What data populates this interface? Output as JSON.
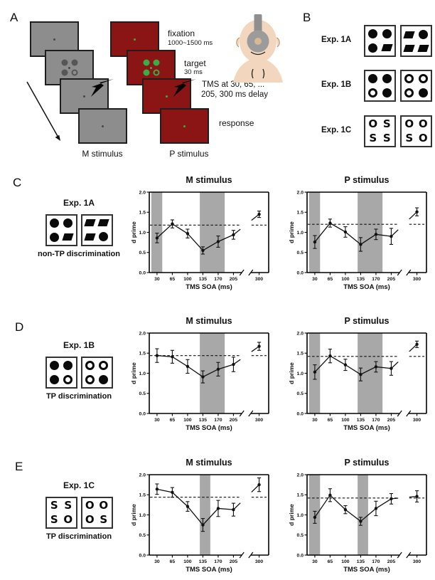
{
  "panel_letters": {
    "a": "A",
    "b": "B",
    "c": "C",
    "d": "D",
    "e": "E"
  },
  "colors": {
    "m_screen": "#8d8d8d",
    "p_screen": "#8b1414",
    "screen_border": "#1e1e1e",
    "target_green": "#3aad47",
    "target_gray": "#565656",
    "shading": "#a8a8a8"
  },
  "panel_a": {
    "fixation_label": "fixation",
    "fixation_duration": "1000~1500 ms",
    "target_label": "target",
    "target_duration": "30 ms",
    "tms_line1": "TMS at 30, 65, ...",
    "tms_line2": "205, 300 ms delay",
    "response_label": "response",
    "m_label": "M stimulus",
    "p_label": "P stimulus"
  },
  "panel_b": {
    "rows": [
      {
        "name": "Exp. 1A",
        "boxes": [
          [
            "fc",
            "fc",
            "fc",
            "pg"
          ],
          [
            "pg",
            "fc",
            "pg",
            "pg"
          ]
        ]
      },
      {
        "name": "Exp. 1B",
        "boxes": [
          [
            "fc",
            "fc",
            "oc",
            "fc"
          ],
          [
            "oc",
            "oc",
            "oc",
            "fc"
          ]
        ]
      },
      {
        "name": "Exp. 1C",
        "boxes": [
          [
            "O",
            "S",
            "S",
            "S"
          ],
          [
            "O",
            "O",
            "S",
            "O"
          ]
        ]
      }
    ]
  },
  "exp_cards": [
    {
      "panel": "C",
      "title": "Exp. 1A",
      "caption": "non-TP discrimination",
      "boxes": [
        [
          "fc",
          "fc",
          "fc",
          "pg"
        ],
        [
          "pg",
          "pg",
          "pg",
          "fc"
        ]
      ]
    },
    {
      "panel": "D",
      "title": "Exp. 1B",
      "caption": "TP discrimination",
      "boxes": [
        [
          "fc",
          "fc",
          "fc",
          "oc"
        ],
        [
          "oc",
          "oc",
          "oc",
          "fc"
        ]
      ]
    },
    {
      "panel": "E",
      "title": "Exp. 1C",
      "caption": "TP discrimination",
      "boxes": [
        [
          "S",
          "S",
          "S",
          "O"
        ],
        [
          "O",
          "O",
          "O",
          "S"
        ]
      ]
    }
  ],
  "chart_data": [
    {
      "id": "c_m",
      "panel": "C",
      "type": "line",
      "title": "M stimulus",
      "xlabel": "TMS SOA (ms)",
      "ylabel": "d prime",
      "x": [
        30,
        65,
        100,
        135,
        170,
        205,
        300
      ],
      "xticklabels": [
        "30",
        "65",
        "100",
        "135",
        "170",
        "205",
        "300"
      ],
      "values": [
        0.86,
        1.21,
        0.97,
        0.55,
        0.77,
        0.94,
        1.45
      ],
      "errors": [
        0.12,
        0.1,
        0.11,
        0.09,
        0.14,
        0.11,
        0.08
      ],
      "baseline": 1.18,
      "ylim": [
        0,
        2
      ],
      "yticks": [
        0,
        0.5,
        1,
        1.5,
        2
      ],
      "shaded_bands_ms": [
        [
          17,
          42
        ],
        [
          128,
          185
        ]
      ],
      "axis_break_between": [
        205,
        300
      ]
    },
    {
      "id": "c_p",
      "panel": "C",
      "type": "line",
      "title": "P stimulus",
      "xlabel": "TMS SOA (ms)",
      "ylabel": "d prime",
      "x": [
        30,
        65,
        100,
        135,
        170,
        205,
        300
      ],
      "xticklabels": [
        "30",
        "65",
        "100",
        "135",
        "170",
        "205",
        "300"
      ],
      "values": [
        0.76,
        1.23,
        1.01,
        0.7,
        0.95,
        0.9,
        1.51
      ],
      "errors": [
        0.16,
        0.1,
        0.13,
        0.17,
        0.13,
        0.2,
        0.1
      ],
      "baseline": 1.2,
      "ylim": [
        0,
        2
      ],
      "yticks": [
        0,
        0.5,
        1,
        1.5,
        2
      ],
      "shaded_bands_ms": [
        [
          17,
          42
        ],
        [
          128,
          185
        ]
      ],
      "axis_break_between": [
        205,
        300
      ]
    },
    {
      "id": "d_m",
      "panel": "D",
      "type": "line",
      "title": "M stimulus",
      "xlabel": "TMS SOA (ms)",
      "ylabel": "d prime",
      "x": [
        30,
        65,
        100,
        135,
        170,
        205,
        300
      ],
      "xticklabels": [
        "30",
        "65",
        "100",
        "135",
        "170",
        "205",
        "300"
      ],
      "values": [
        1.44,
        1.41,
        1.17,
        0.91,
        1.1,
        1.22,
        1.67
      ],
      "errors": [
        0.17,
        0.16,
        0.17,
        0.15,
        0.17,
        0.18,
        0.1
      ],
      "baseline": 1.44,
      "ylim": [
        0,
        2
      ],
      "yticks": [
        0,
        0.5,
        1,
        1.5,
        2
      ],
      "shaded_bands_ms": [
        [
          128,
          185
        ]
      ],
      "axis_break_between": [
        205,
        300
      ]
    },
    {
      "id": "d_p",
      "panel": "D",
      "type": "line",
      "title": "P stimulus",
      "xlabel": "TMS SOA (ms)",
      "ylabel": "d prime",
      "x": [
        30,
        65,
        100,
        135,
        170,
        205,
        300
      ],
      "xticklabels": [
        "30",
        "65",
        "100",
        "135",
        "170",
        "205",
        "300"
      ],
      "values": [
        1.03,
        1.43,
        1.21,
        0.97,
        1.16,
        1.12,
        1.72
      ],
      "errors": [
        0.18,
        0.17,
        0.14,
        0.16,
        0.13,
        0.17,
        0.08
      ],
      "baseline": 1.42,
      "ylim": [
        0,
        2
      ],
      "yticks": [
        0,
        0.5,
        1,
        1.5,
        2
      ],
      "shaded_bands_ms": [
        [
          17,
          42
        ],
        [
          128,
          185
        ]
      ],
      "axis_break_between": [
        205,
        300
      ]
    },
    {
      "id": "e_m",
      "panel": "E",
      "type": "line",
      "title": "M stimulus",
      "xlabel": "TMS SOA (ms)",
      "ylabel": "d prime",
      "x": [
        30,
        65,
        100,
        135,
        170,
        205,
        300
      ],
      "xticklabels": [
        "30",
        "65",
        "100",
        "135",
        "170",
        "205",
        "300"
      ],
      "values": [
        1.64,
        1.56,
        1.21,
        0.75,
        1.16,
        1.13,
        1.75
      ],
      "errors": [
        0.13,
        0.12,
        0.12,
        0.16,
        0.2,
        0.16,
        0.17
      ],
      "baseline": 1.44,
      "ylim": [
        0,
        2
      ],
      "yticks": [
        0,
        0.5,
        1,
        1.5,
        2
      ],
      "shaded_bands_ms": [
        [
          128,
          152
        ]
      ],
      "axis_break_between": [
        205,
        300
      ]
    },
    {
      "id": "e_p",
      "panel": "E",
      "type": "line",
      "title": "P stimulus",
      "xlabel": "TMS SOA (ms)",
      "ylabel": "d prime",
      "x": [
        30,
        65,
        100,
        135,
        170,
        205,
        300
      ],
      "xticklabels": [
        "30",
        "65",
        "100",
        "135",
        "170",
        "205",
        "300"
      ],
      "values": [
        0.94,
        1.49,
        1.13,
        0.84,
        1.16,
        1.4,
        1.46
      ],
      "errors": [
        0.15,
        0.16,
        0.1,
        0.1,
        0.18,
        0.13,
        0.14
      ],
      "baseline": 1.42,
      "ylim": [
        0,
        2
      ],
      "yticks": [
        0,
        0.5,
        1,
        1.5,
        2
      ],
      "shaded_bands_ms": [
        [
          17,
          42
        ],
        [
          128,
          152
        ]
      ],
      "axis_break_between": [
        205,
        300
      ]
    }
  ]
}
